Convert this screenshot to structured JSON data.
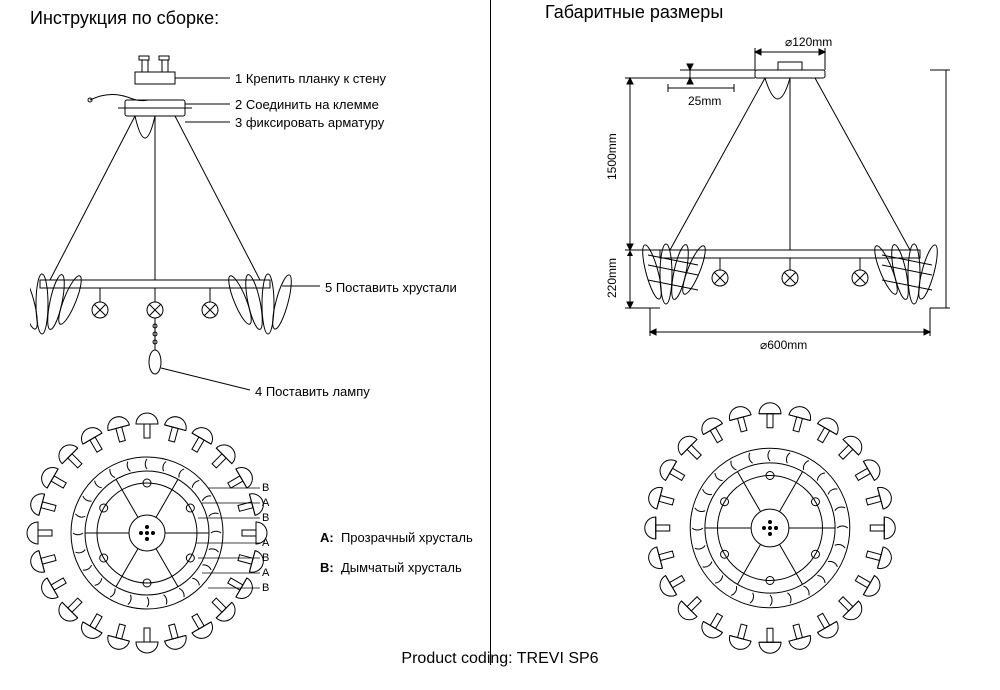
{
  "titles": {
    "left": "Инструкция по сборке:",
    "right": "Габаритные размеры"
  },
  "steps": {
    "s1": "1 Крепить планку к стену",
    "s2": "2 Соединить на клемме",
    "s3": "3 фиксировать арматуру",
    "s4": "4 Поставить лампу",
    "s5": "5 Поставить хрустали"
  },
  "legend": {
    "a_bold": "A:",
    "a_text": "Прозрачный хрусталь",
    "b_bold": "B:",
    "b_text": "Дымчатый хрусталь"
  },
  "dims": {
    "d120": "⌀120mm",
    "d25": "25mm",
    "d1500": "1500mm",
    "d220": "220mm",
    "d600": "⌀600mm"
  },
  "product": "Product coding: TREVI SP6",
  "colors": {
    "stroke": "#000000",
    "bg": "#ffffff"
  },
  "geometry": {
    "petals": 24,
    "rosette": {
      "outerR": 105,
      "innerR1": 76,
      "innerR2": 62,
      "innerR3": 50,
      "hubR": 18
    },
    "chandelier": {
      "ringWidth": 300,
      "ringThickness": 8,
      "canopyW": 50,
      "canopyH": 10,
      "cableDrop": 140
    }
  }
}
